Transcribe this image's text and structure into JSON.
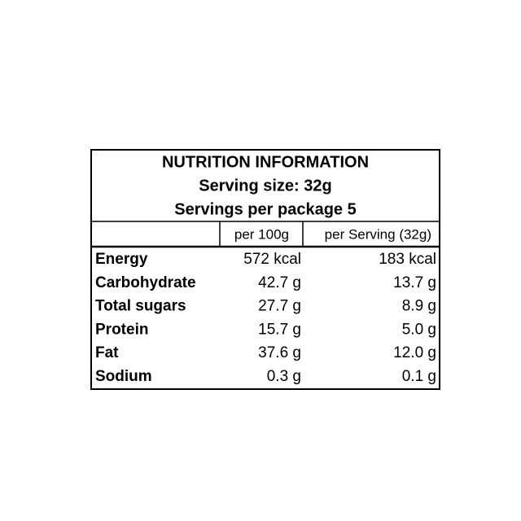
{
  "header": {
    "title": "NUTRITION INFORMATION",
    "serving_size": "Serving size: 32g",
    "servings_per_package": "Servings per package 5"
  },
  "table": {
    "columns": [
      "per 100g",
      "per Serving (32g)"
    ],
    "rows": [
      [
        "Energy",
        "572 kcal",
        "183 kcal"
      ],
      [
        "Carbohydrate",
        "42.7 g",
        "13.7 g"
      ],
      [
        "Total sugars",
        "27.7 g",
        "8.9 g"
      ],
      [
        "Protein",
        "15.7 g",
        "5.0 g"
      ],
      [
        "Fat",
        "37.6 g",
        "12.0 g"
      ],
      [
        "Sodium",
        "0.3 g",
        "0.1 g"
      ]
    ]
  }
}
